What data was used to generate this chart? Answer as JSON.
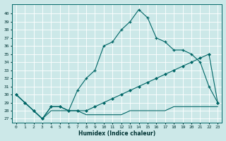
{
  "xlabel": "Humidex (Indice chaleur)",
  "bg_color": "#cce8e8",
  "grid_color": "#ffffff",
  "line_color": "#006666",
  "xlim": [
    -0.5,
    23.5
  ],
  "ylim": [
    26.5,
    41.2
  ],
  "xticks": [
    0,
    1,
    2,
    3,
    4,
    5,
    6,
    7,
    8,
    9,
    10,
    11,
    12,
    13,
    14,
    15,
    16,
    17,
    18,
    19,
    20,
    21,
    22,
    23
  ],
  "yticks": [
    27,
    28,
    29,
    30,
    31,
    32,
    33,
    34,
    35,
    36,
    37,
    38,
    39,
    40
  ],
  "line1_x": [
    0,
    1,
    2,
    3,
    4,
    5,
    6,
    7,
    8,
    9,
    10,
    11,
    12,
    13,
    14,
    15,
    16,
    17,
    18,
    19,
    20,
    21,
    22,
    23
  ],
  "line1_y": [
    30,
    29,
    28,
    27,
    28.5,
    28.5,
    28,
    28,
    28,
    28.5,
    29,
    29.5,
    30,
    30.5,
    31,
    31.5,
    32,
    32.5,
    33,
    33.5,
    34,
    34.5,
    35,
    29
  ],
  "line2_x": [
    0,
    1,
    2,
    3,
    4,
    5,
    6,
    7,
    8,
    9,
    10,
    11,
    12,
    13,
    14,
    15,
    16,
    17,
    18,
    19,
    20,
    21,
    22,
    23
  ],
  "line2_y": [
    30,
    29,
    28,
    27,
    28.5,
    28.5,
    28,
    30.5,
    32,
    33,
    36,
    36.5,
    38,
    39,
    40.5,
    39.5,
    37,
    36.5,
    35.5,
    35.5,
    35,
    34,
    31,
    29
  ],
  "line3_x": [
    0,
    1,
    2,
    3,
    4,
    5,
    6,
    7,
    8,
    9,
    10,
    11,
    12,
    13,
    14,
    15,
    16,
    17,
    18,
    19,
    20,
    21,
    22,
    23
  ],
  "line3_y": [
    30,
    29,
    28,
    27,
    28,
    28,
    28,
    28,
    27.5,
    27.5,
    27.5,
    27.5,
    27.5,
    28,
    28,
    28,
    28,
    28,
    28.5,
    28.5,
    28.5,
    28.5,
    28.5,
    28.5
  ]
}
